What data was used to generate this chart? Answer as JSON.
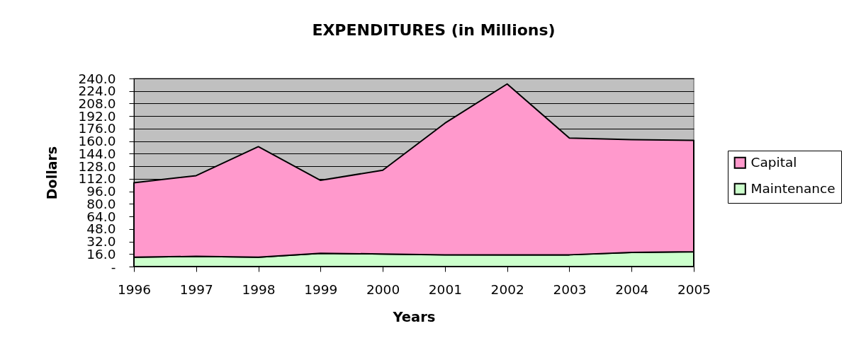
{
  "chart_data": {
    "type": "area",
    "title": "EXPENDITURES (in Millions)",
    "xlabel": "Years",
    "ylabel": "Dollars",
    "categories": [
      "1996",
      "1997",
      "1998",
      "1999",
      "2000",
      "2001",
      "2002",
      "2003",
      "2004",
      "2005"
    ],
    "series": [
      {
        "name": "Maintenance",
        "color": "#ccffcc",
        "values": [
          12,
          13,
          12,
          17,
          16,
          15,
          15,
          15,
          18,
          19
        ]
      },
      {
        "name": "Capital",
        "color": "#ff99cc",
        "values": [
          95,
          103,
          141,
          93,
          107,
          168,
          218,
          149,
          144,
          142
        ]
      }
    ],
    "stacked": true,
    "ylim": [
      0,
      240
    ],
    "yticks": [
      {
        "value": 0,
        "label": "-"
      },
      {
        "value": 16,
        "label": "16.0"
      },
      {
        "value": 32,
        "label": "32.0"
      },
      {
        "value": 48,
        "label": "48.0"
      },
      {
        "value": 64,
        "label": "64.0"
      },
      {
        "value": 80,
        "label": "80.0"
      },
      {
        "value": 96,
        "label": "96.0"
      },
      {
        "value": 112,
        "label": "112.0"
      },
      {
        "value": 128,
        "label": "128.0"
      },
      {
        "value": 144,
        "label": "144.0"
      },
      {
        "value": 160,
        "label": "160.0"
      },
      {
        "value": 176,
        "label": "176.0"
      },
      {
        "value": 192,
        "label": "192.0"
      },
      {
        "value": 208,
        "label": "208.0"
      },
      {
        "value": 224,
        "label": "224.0"
      },
      {
        "value": 240,
        "label": "240.0"
      }
    ],
    "grid": "y",
    "legend": "right"
  }
}
